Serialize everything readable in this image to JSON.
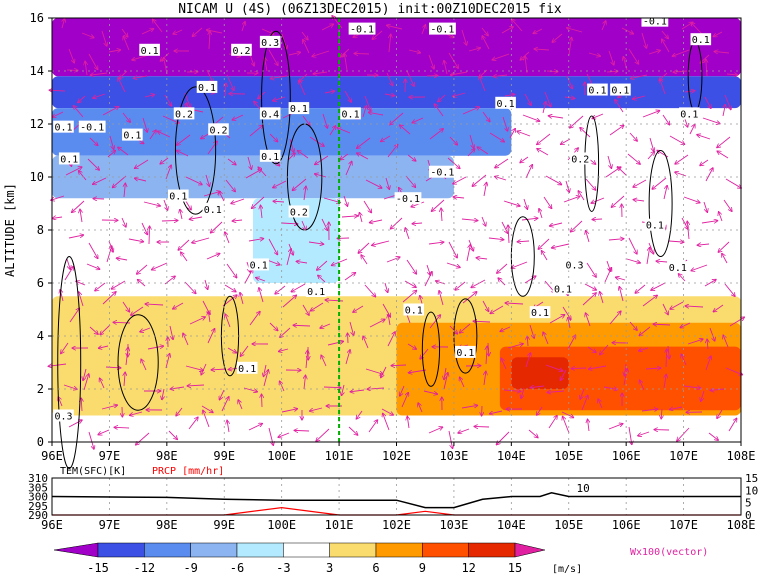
{
  "title": "NICAM U (4S) (06Z13DEC2015) init:00Z10DEC2015 fix",
  "chart_data": [
    {
      "type": "heatmap",
      "title": "NICAM U (4S) (06Z13DEC2015) init:00Z10DEC2015 fix",
      "ylabel": "ALTITUDE [km]",
      "xlabel": "",
      "xlim": [
        96,
        108
      ],
      "ylim": [
        0,
        16
      ],
      "xticks": [
        "96E",
        "97E",
        "98E",
        "99E",
        "100E",
        "101E",
        "102E",
        "103E",
        "104E",
        "105E",
        "106E",
        "107E",
        "108E"
      ],
      "yticks": [
        "0",
        "2",
        "4",
        "6",
        "8",
        "10",
        "12",
        "14",
        "16"
      ],
      "grid": true,
      "marker_line_x": 101,
      "shading_regions": [
        {
          "level": -15,
          "x": [
            96,
            108
          ],
          "y": [
            13.8,
            16
          ]
        },
        {
          "level": -12,
          "x": [
            96,
            108
          ],
          "y": [
            12.6,
            13.8
          ]
        },
        {
          "level": -9,
          "x": [
            96,
            104
          ],
          "y": [
            10.8,
            12.6
          ]
        },
        {
          "level": -6,
          "x": [
            96,
            103
          ],
          "y": [
            9.2,
            10.8
          ]
        },
        {
          "level": -3,
          "x": [
            99.5,
            101
          ],
          "y": [
            6,
            9.2
          ]
        },
        {
          "level": 3,
          "x": [
            96,
            108
          ],
          "y": [
            1,
            5.5
          ]
        },
        {
          "level": 6,
          "x": [
            102,
            108
          ],
          "y": [
            1,
            4.5
          ]
        },
        {
          "level": 9,
          "x": [
            103.8,
            108
          ],
          "y": [
            1.2,
            3.6
          ]
        },
        {
          "level": 12,
          "x": [
            104,
            105
          ],
          "y": [
            2,
            3.2
          ]
        }
      ],
      "contour_labels": [
        {
          "text": "0.1",
          "x": 97.7,
          "y": 14.8
        },
        {
          "text": "0.2",
          "x": 99.3,
          "y": 14.8
        },
        {
          "text": "0.3",
          "x": 99.8,
          "y": 15.1
        },
        {
          "text": "-0.1",
          "x": 101.4,
          "y": 15.6
        },
        {
          "text": "-0.1",
          "x": 102.8,
          "y": 15.6
        },
        {
          "text": "-0.1",
          "x": 106.5,
          "y": 15.9
        },
        {
          "text": "0.1",
          "x": 107.3,
          "y": 15.2
        },
        {
          "text": "0.1",
          "x": 98.7,
          "y": 13.4
        },
        {
          "text": "0.1",
          "x": 105.5,
          "y": 13.3
        },
        {
          "text": "0.1",
          "x": 105.9,
          "y": 13.3
        },
        {
          "text": "0.1",
          "x": 103.9,
          "y": 12.8
        },
        {
          "text": "-0.1",
          "x": 96.7,
          "y": 11.9
        },
        {
          "text": "0.1",
          "x": 96.2,
          "y": 11.9
        },
        {
          "text": "0.1",
          "x": 97.4,
          "y": 11.6
        },
        {
          "text": "0.2",
          "x": 98.3,
          "y": 12.4
        },
        {
          "text": "0.2",
          "x": 98.9,
          "y": 11.8
        },
        {
          "text": "0.4",
          "x": 99.8,
          "y": 12.4
        },
        {
          "text": "0.1",
          "x": 100.3,
          "y": 12.6
        },
        {
          "text": "0.1",
          "x": 101.2,
          "y": 12.4
        },
        {
          "text": "0.1",
          "x": 107.1,
          "y": 12.4
        },
        {
          "text": "0.1",
          "x": 96.3,
          "y": 10.7
        },
        {
          "text": "0.2",
          "x": 105.2,
          "y": 10.7
        },
        {
          "text": "0.1",
          "x": 99.8,
          "y": 10.8
        },
        {
          "text": "-0.1",
          "x": 102.8,
          "y": 10.2
        },
        {
          "text": "0.1",
          "x": 98.2,
          "y": 9.3
        },
        {
          "text": "0.1",
          "x": 98.8,
          "y": 8.8
        },
        {
          "text": "0.2",
          "x": 100.3,
          "y": 8.7
        },
        {
          "text": "-0.1",
          "x": 102.2,
          "y": 9.2
        },
        {
          "text": "0.1",
          "x": 106.5,
          "y": 8.2
        },
        {
          "text": "0.1",
          "x": 99.6,
          "y": 6.7
        },
        {
          "text": "0.3",
          "x": 105.1,
          "y": 6.7
        },
        {
          "text": "0.1",
          "x": 106.9,
          "y": 6.6
        },
        {
          "text": "0.1",
          "x": 100.6,
          "y": 5.7
        },
        {
          "text": "0.1",
          "x": 104.9,
          "y": 5.8
        },
        {
          "text": "0.1",
          "x": 102.3,
          "y": 5.0
        },
        {
          "text": "0.1",
          "x": 104.5,
          "y": 4.9
        },
        {
          "text": "0.1",
          "x": 103.2,
          "y": 3.4
        },
        {
          "text": "0.1",
          "x": 99.4,
          "y": 2.8
        },
        {
          "text": "0.3",
          "x": 96.2,
          "y": 1.0
        }
      ]
    },
    {
      "type": "line",
      "title": "",
      "x": [
        96,
        98,
        99,
        100,
        101,
        102,
        102.5,
        103,
        103.5,
        104,
        104.5,
        104.7,
        105,
        105.5,
        106,
        107,
        108
      ],
      "series": [
        {
          "name": "TEM(SFC)[K]",
          "color": "#000000",
          "values": [
            300,
            299.5,
            298.5,
            298,
            298,
            298,
            294,
            294,
            298.5,
            300,
            300,
            302,
            300,
            300,
            300,
            300,
            300
          ]
        },
        {
          "name": "PRCP [mm/hr]",
          "color": "#ff0000",
          "values": [
            0,
            0,
            0,
            3,
            0,
            0,
            1.5,
            0,
            0,
            0,
            0,
            0,
            0,
            0,
            0,
            0,
            0
          ]
        }
      ],
      "xticks": [
        "96E",
        "97E",
        "98E",
        "99E",
        "100E",
        "101E",
        "102E",
        "103E",
        "104E",
        "105E",
        "106E",
        "107E",
        "108E"
      ],
      "ylim": [
        290,
        310
      ],
      "yticks_left": [
        "290",
        "295",
        "300",
        "305",
        "310"
      ],
      "ylim_right": [
        0,
        15
      ],
      "yticks_right": [
        "0",
        "5",
        "10",
        "15"
      ],
      "annotation": "10"
    }
  ],
  "colorbar": {
    "ticks": [
      "-15",
      "-12",
      "-9",
      "-6",
      "-3",
      "3",
      "6",
      "9",
      "12",
      "15"
    ],
    "unit": "[m/s]",
    "colors": [
      "#a000c8",
      "#3c50e6",
      "#5a8cf0",
      "#8cb4f0",
      "#b4eaff",
      "#ffffff",
      "#fadc6e",
      "#ff9b00",
      "#ff5000",
      "#e62800",
      "#b40000"
    ]
  },
  "vector_label": "Wx100(vector)"
}
